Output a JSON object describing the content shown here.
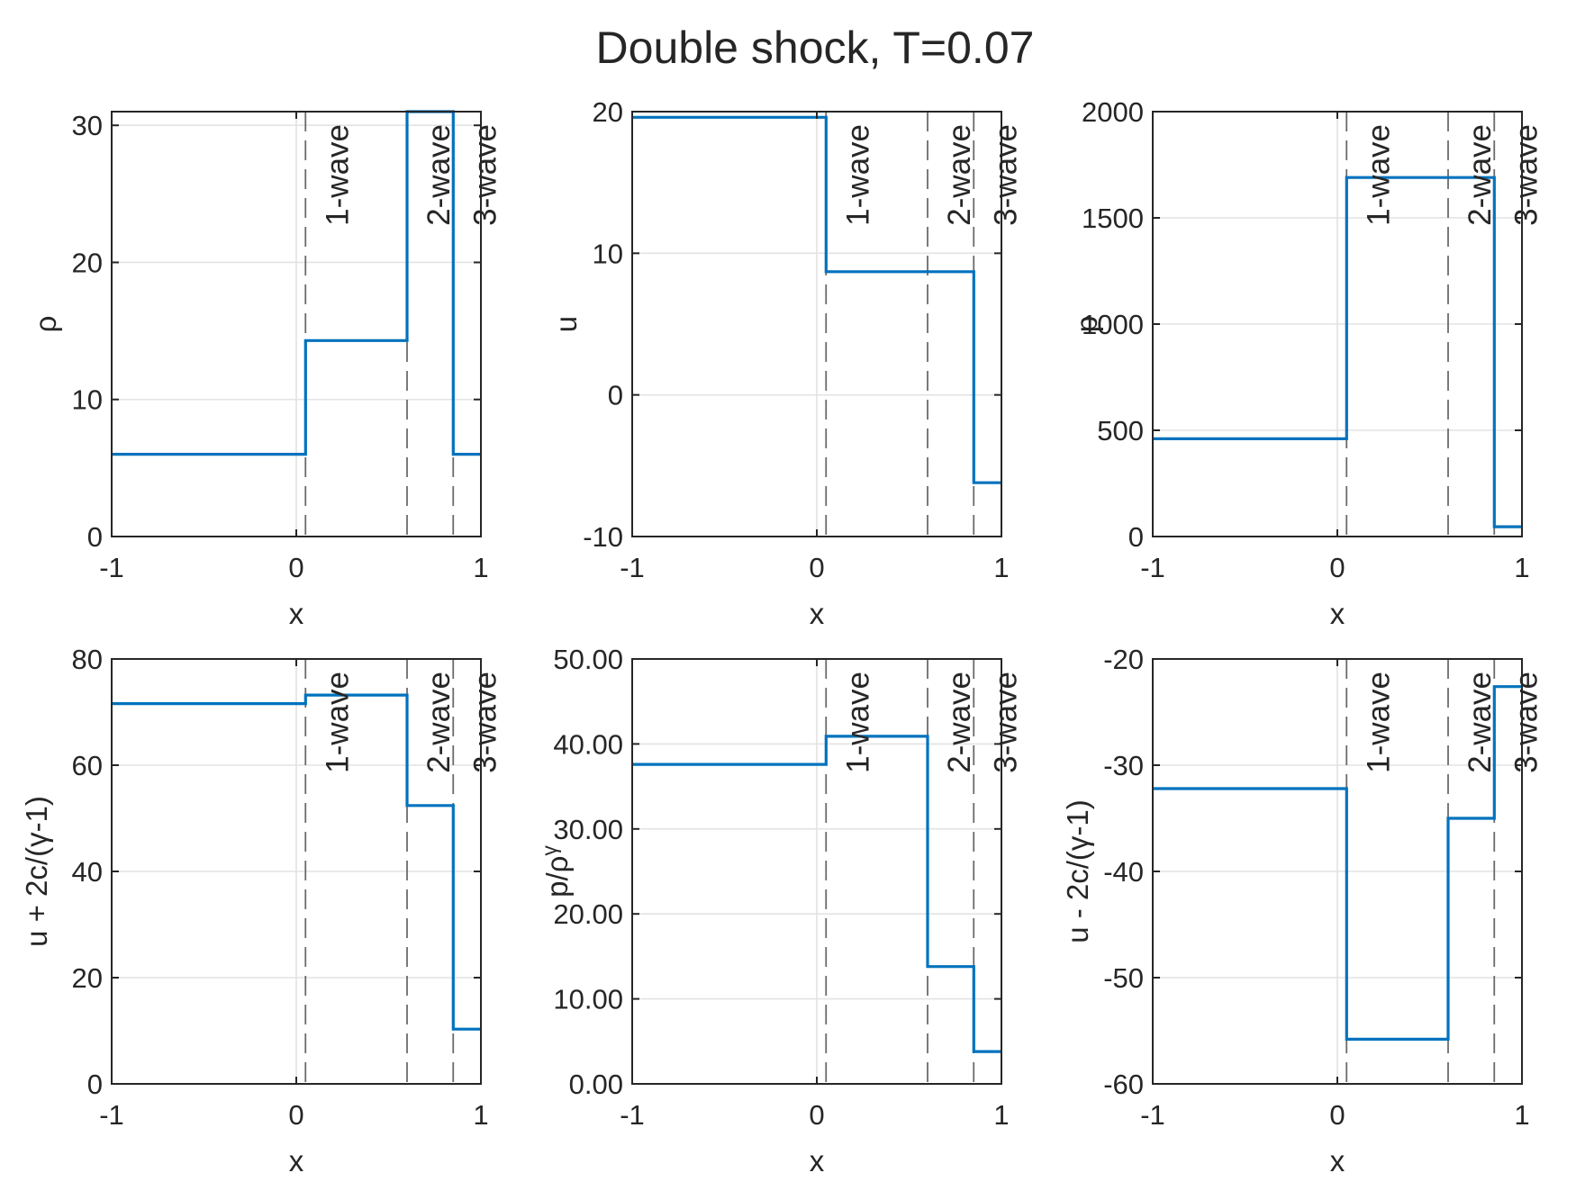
{
  "title": "Double shock, T=0.07",
  "chart_data": [
    {
      "type": "line",
      "xlabel": "x",
      "ylabel": "ρ",
      "xlim": [
        -1,
        1
      ],
      "ylim": [
        0,
        31
      ],
      "xticks": [
        "-1",
        "0",
        "1"
      ],
      "yticks": [
        0,
        10,
        20,
        30
      ],
      "ytick_labels": [
        "0",
        "10",
        "20",
        "30"
      ],
      "x": [
        -1,
        0.05,
        0.05,
        0.6,
        0.6,
        0.85,
        0.85,
        1
      ],
      "y": [
        6,
        6,
        14.3,
        14.3,
        31,
        31,
        6,
        6
      ],
      "wave_positions": [
        0.05,
        0.6,
        0.85
      ],
      "wave_labels": [
        "1-wave",
        "2-wave",
        "3-wave"
      ],
      "grid": true
    },
    {
      "type": "line",
      "xlabel": "x",
      "ylabel": "u",
      "xlim": [
        -1,
        1
      ],
      "ylim": [
        -10,
        20
      ],
      "xticks": [
        "-1",
        "0",
        "1"
      ],
      "yticks": [
        -10,
        0,
        10,
        20
      ],
      "ytick_labels": [
        "-10",
        "0",
        "10",
        "20"
      ],
      "x": [
        -1,
        0.05,
        0.05,
        0.85,
        0.85,
        1
      ],
      "y": [
        19.6,
        19.6,
        8.7,
        8.7,
        -6.2,
        -6.2
      ],
      "wave_positions": [
        0.05,
        0.6,
        0.85
      ],
      "wave_labels": [
        "1-wave",
        "2-wave",
        "3-wave"
      ],
      "grid": true
    },
    {
      "type": "line",
      "xlabel": "x",
      "ylabel": "p",
      "xlim": [
        -1,
        1
      ],
      "ylim": [
        0,
        2000
      ],
      "xticks": [
        "-1",
        "0",
        "1"
      ],
      "yticks": [
        0,
        500,
        1000,
        1500,
        2000
      ],
      "ytick_labels": [
        "0",
        "500",
        "1000",
        "1500",
        "2000"
      ],
      "x": [
        -1,
        0.05,
        0.05,
        0.85,
        0.85,
        1
      ],
      "y": [
        460,
        460,
        1690,
        1690,
        46,
        46
      ],
      "wave_positions": [
        0.05,
        0.6,
        0.85
      ],
      "wave_labels": [
        "1-wave",
        "2-wave",
        "3-wave"
      ],
      "grid": true
    },
    {
      "type": "line",
      "xlabel": "x",
      "ylabel": "u + 2c/(γ-1)",
      "xlim": [
        -1,
        1
      ],
      "ylim": [
        0,
        80
      ],
      "xticks": [
        "-1",
        "0",
        "1"
      ],
      "yticks": [
        0,
        20,
        40,
        60,
        80
      ],
      "ytick_labels": [
        "0",
        "20",
        "40",
        "60",
        "80"
      ],
      "x": [
        -1,
        0.05,
        0.05,
        0.6,
        0.6,
        0.85,
        0.85,
        1
      ],
      "y": [
        71.6,
        71.6,
        73.2,
        73.2,
        52.4,
        52.4,
        10.3,
        10.3
      ],
      "wave_positions": [
        0.05,
        0.6,
        0.85
      ],
      "wave_labels": [
        "1-wave",
        "2-wave",
        "3-wave"
      ],
      "grid": true
    },
    {
      "type": "line",
      "xlabel": "x",
      "ylabel": "p/ρ^γ",
      "xlim": [
        -1,
        1
      ],
      "ylim": [
        0,
        50
      ],
      "xticks": [
        "-1",
        "0",
        "1"
      ],
      "yticks": [
        0,
        10,
        20,
        30,
        40,
        50
      ],
      "ytick_labels": [
        "0.00",
        "10.00",
        "20.00",
        "30.00",
        "40.00",
        "50.00"
      ],
      "x": [
        -1,
        0.05,
        0.05,
        0.6,
        0.6,
        0.85,
        0.85,
        1
      ],
      "y": [
        37.6,
        37.6,
        40.9,
        40.9,
        13.8,
        13.8,
        3.8,
        3.8
      ],
      "wave_positions": [
        0.05,
        0.6,
        0.85
      ],
      "wave_labels": [
        "1-wave",
        "2-wave",
        "3-wave"
      ],
      "grid": true
    },
    {
      "type": "line",
      "xlabel": "x",
      "ylabel": "u - 2c/(γ-1)",
      "xlim": [
        -1,
        1
      ],
      "ylim": [
        -60,
        -20
      ],
      "xticks": [
        "-1",
        "0",
        "1"
      ],
      "yticks": [
        -60,
        -50,
        -40,
        -30,
        -20
      ],
      "ytick_labels": [
        "-60",
        "-50",
        "-40",
        "-30",
        "-20"
      ],
      "x": [
        -1,
        0.05,
        0.05,
        0.6,
        0.6,
        0.85,
        0.85,
        1
      ],
      "y": [
        -32.2,
        -32.2,
        -55.8,
        -55.8,
        -35,
        -35,
        -22.6,
        -22.6
      ],
      "wave_positions": [
        0.05,
        0.6,
        0.85
      ],
      "wave_labels": [
        "1-wave",
        "2-wave",
        "3-wave"
      ],
      "grid": true
    }
  ]
}
